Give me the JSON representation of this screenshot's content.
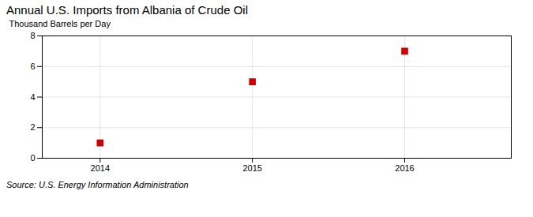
{
  "chart_data": {
    "type": "scatter",
    "title": "Annual U.S. Imports from Albania of Crude Oil",
    "ylabel": "Thousand Barrels per Day",
    "source": "Source: U.S. Energy Information Administration",
    "x": [
      2014,
      2015,
      2016
    ],
    "values": [
      1,
      5,
      7
    ],
    "xlim": [
      2013.62,
      2016.7
    ],
    "ylim": [
      0,
      8
    ],
    "xticks": [
      2014,
      2015,
      2016
    ],
    "yticks": [
      0,
      2,
      4,
      6,
      8
    ],
    "color": "#cc0000",
    "marker": "square",
    "grid": true
  }
}
